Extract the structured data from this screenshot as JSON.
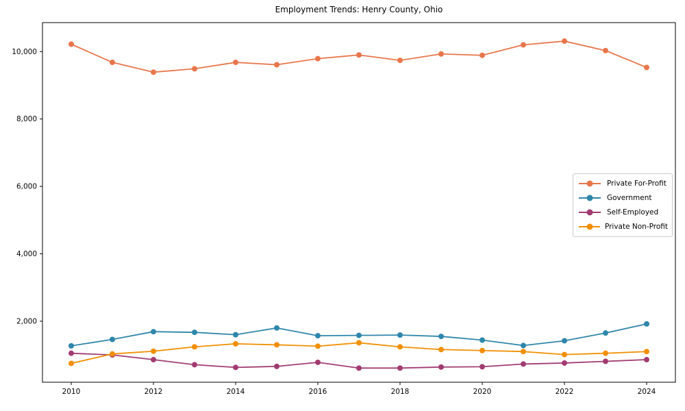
{
  "figure": {
    "background": "#ffffff"
  },
  "chart_data": {
    "type": "line",
    "title": "Employment Trends: Henry County, Ohio",
    "xlabel": "",
    "ylabel": "",
    "grid": false,
    "legend_position": "center right",
    "xlim": [
      2009.3,
      2024.7
    ],
    "ylim": [
      190,
      10860
    ],
    "x": [
      2010,
      2011,
      2012,
      2013,
      2014,
      2015,
      2016,
      2017,
      2018,
      2019,
      2020,
      2021,
      2022,
      2023,
      2024
    ],
    "x_ticks": [
      {
        "value": 2010,
        "label": "2010"
      },
      {
        "value": 2012,
        "label": "2012"
      },
      {
        "value": 2014,
        "label": "2014"
      },
      {
        "value": 2016,
        "label": "2016"
      },
      {
        "value": 2018,
        "label": "2018"
      },
      {
        "value": 2020,
        "label": "2020"
      },
      {
        "value": 2022,
        "label": "2022"
      },
      {
        "value": 2024,
        "label": "2024"
      }
    ],
    "y_ticks": [
      {
        "value": 2000,
        "label": "2,000"
      },
      {
        "value": 4000,
        "label": "4,000"
      },
      {
        "value": 6000,
        "label": "6,000"
      },
      {
        "value": 8000,
        "label": "8,000"
      },
      {
        "value": 10000,
        "label": "10,000"
      }
    ],
    "series": [
      {
        "name": "Private For-Profit",
        "color": "#E8764B",
        "values": [
          10220,
          9680,
          9390,
          9490,
          9680,
          9610,
          9790,
          9900,
          9740,
          9930,
          9890,
          10200,
          10310,
          10030,
          9530
        ]
      },
      {
        "name": "Government",
        "color": "#2E86AB",
        "values": [
          1270,
          1460,
          1690,
          1670,
          1600,
          1800,
          1570,
          1580,
          1590,
          1550,
          1440,
          1280,
          1420,
          1650,
          1920
        ]
      },
      {
        "name": "Self-Employed",
        "color": "#A23B72",
        "values": [
          1050,
          1000,
          860,
          710,
          630,
          660,
          780,
          610,
          610,
          640,
          650,
          730,
          760,
          810,
          860
        ]
      },
      {
        "name": "Private Non-Profit",
        "color": "#F18F01",
        "values": [
          750,
          1030,
          1110,
          1240,
          1330,
          1300,
          1260,
          1360,
          1240,
          1160,
          1130,
          1100,
          1010,
          1050,
          1100
        ]
      }
    ]
  }
}
